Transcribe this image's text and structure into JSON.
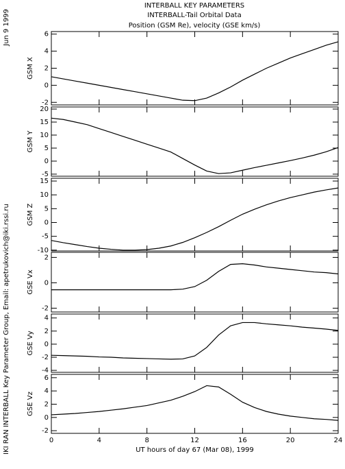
{
  "header": {
    "title": "INTERBALL KEY PARAMETERS",
    "subtitle": "INTERBALL-Tail Orbital Data",
    "subtitle2": "Position (GSM Re), velocity (GSE km/s)",
    "date": "Jun  9 1999",
    "credit": "IKI RAN INTERBALL Key Parameter Group, Email: apetrukovich@iki.rssi.ru"
  },
  "chart_data": [
    {
      "type": "line",
      "ylabel": "GSM X",
      "color": "#000000",
      "x": [
        0,
        1,
        2,
        3,
        4,
        5,
        6,
        7,
        8,
        9,
        10,
        11,
        12,
        13,
        14,
        15,
        16,
        17,
        18,
        19,
        20,
        21,
        22,
        23,
        24
      ],
      "values": [
        1.0,
        0.75,
        0.5,
        0.25,
        0.0,
        -0.25,
        -0.5,
        -0.75,
        -1.0,
        -1.25,
        -1.5,
        -1.75,
        -1.8,
        -1.5,
        -0.9,
        -0.2,
        0.6,
        1.3,
        2.0,
        2.6,
        3.2,
        3.7,
        4.2,
        4.7,
        5.1
      ],
      "xlim": [
        0,
        24
      ],
      "xticks": [
        0,
        4,
        8,
        12,
        16,
        20,
        24
      ],
      "ylim": [
        -2.3,
        6.3
      ],
      "yticks": [
        -2,
        0,
        2,
        4,
        6
      ]
    },
    {
      "type": "line",
      "ylabel": "GSM Y",
      "color": "#000000",
      "x": [
        0,
        1,
        2,
        3,
        4,
        5,
        6,
        7,
        8,
        9,
        10,
        11,
        12,
        13,
        14,
        15,
        16,
        17,
        18,
        19,
        20,
        21,
        22,
        23,
        24
      ],
      "values": [
        16.5,
        16,
        15,
        14,
        12.5,
        11,
        9.5,
        8,
        6.5,
        5,
        3.5,
        1.0,
        -1.5,
        -3.8,
        -4.8,
        -4.5,
        -3.5,
        -2.5,
        -1.6,
        -0.7,
        0.2,
        1.2,
        2.3,
        3.6,
        5.2
      ],
      "xlim": [
        0,
        24
      ],
      "xticks": [
        0,
        4,
        8,
        12,
        16,
        20,
        24
      ],
      "ylim": [
        -5.8,
        20.8
      ],
      "yticks": [
        -5,
        0,
        5,
        10,
        15,
        20
      ]
    },
    {
      "type": "line",
      "ylabel": "GSM Z",
      "color": "#000000",
      "x": [
        0,
        1,
        2,
        3,
        4,
        5,
        6,
        7,
        8,
        9,
        10,
        11,
        12,
        13,
        14,
        15,
        16,
        17,
        18,
        19,
        20,
        21,
        22,
        23,
        24
      ],
      "values": [
        -6.5,
        -7.3,
        -8,
        -8.7,
        -9.3,
        -9.7,
        -10,
        -10,
        -9.8,
        -9.3,
        -8.5,
        -7.2,
        -5.5,
        -3.6,
        -1.5,
        0.8,
        3,
        4.8,
        6.4,
        7.8,
        9,
        10,
        11,
        11.8,
        12.5
      ],
      "xlim": [
        0,
        24
      ],
      "xticks": [
        0,
        4,
        8,
        12,
        16,
        20,
        24
      ],
      "ylim": [
        -10.3,
        16
      ],
      "yticks": [
        -10,
        -5,
        0,
        5,
        10,
        15
      ]
    },
    {
      "type": "line",
      "ylabel": "GSE Vx",
      "color": "#000000",
      "x": [
        0,
        1,
        2,
        3,
        4,
        5,
        6,
        7,
        8,
        9,
        10,
        11,
        12,
        13,
        14,
        15,
        16,
        17,
        18,
        19,
        20,
        21,
        22,
        23,
        24
      ],
      "values": [
        -0.55,
        -0.55,
        -0.55,
        -0.55,
        -0.55,
        -0.55,
        -0.55,
        -0.55,
        -0.55,
        -0.55,
        -0.55,
        -0.5,
        -0.3,
        0.2,
        0.9,
        1.45,
        1.5,
        1.4,
        1.25,
        1.15,
        1.05,
        0.95,
        0.85,
        0.8,
        0.7
      ],
      "xlim": [
        0,
        24
      ],
      "xticks": [
        0,
        4,
        8,
        12,
        16,
        20,
        24
      ],
      "ylim": [
        -2.3,
        2.4
      ],
      "yticks": [
        -2,
        0,
        2
      ]
    },
    {
      "type": "line",
      "ylabel": "GSE Vy",
      "color": "#000000",
      "x": [
        0,
        1,
        2,
        3,
        4,
        5,
        6,
        7,
        8,
        9,
        10,
        11,
        12,
        13,
        14,
        15,
        16,
        17,
        18,
        19,
        20,
        21,
        22,
        23,
        24
      ],
      "values": [
        -1.7,
        -1.75,
        -1.8,
        -1.85,
        -1.95,
        -2.0,
        -2.1,
        -2.15,
        -2.2,
        -2.25,
        -2.3,
        -2.25,
        -1.8,
        -0.5,
        1.4,
        2.8,
        3.3,
        3.3,
        3.1,
        2.95,
        2.8,
        2.6,
        2.45,
        2.3,
        2.1
      ],
      "xlim": [
        0,
        24
      ],
      "xticks": [
        0,
        4,
        8,
        12,
        16,
        20,
        24
      ],
      "ylim": [
        -4.3,
        4.6
      ],
      "yticks": [
        -4,
        -2,
        0,
        2,
        4
      ]
    },
    {
      "type": "line",
      "ylabel": "GSE Vz",
      "xlabel": "UT hours of day  67 (Mar 08), 1999",
      "color": "#000000",
      "x": [
        0,
        1,
        2,
        3,
        4,
        5,
        6,
        7,
        8,
        9,
        10,
        11,
        12,
        13,
        14,
        15,
        16,
        17,
        18,
        19,
        20,
        21,
        22,
        23,
        24
      ],
      "values": [
        0.4,
        0.5,
        0.6,
        0.75,
        0.9,
        1.1,
        1.3,
        1.55,
        1.8,
        2.2,
        2.6,
        3.2,
        3.9,
        4.8,
        4.6,
        3.5,
        2.3,
        1.5,
        0.9,
        0.5,
        0.2,
        0.0,
        -0.2,
        -0.3,
        -0.45
      ],
      "xlim": [
        0,
        24
      ],
      "xticks": [
        0,
        4,
        8,
        12,
        16,
        20,
        24
      ],
      "ylim": [
        -2.4,
        6.5
      ],
      "yticks": [
        -2,
        0,
        2,
        4,
        6
      ]
    }
  ]
}
